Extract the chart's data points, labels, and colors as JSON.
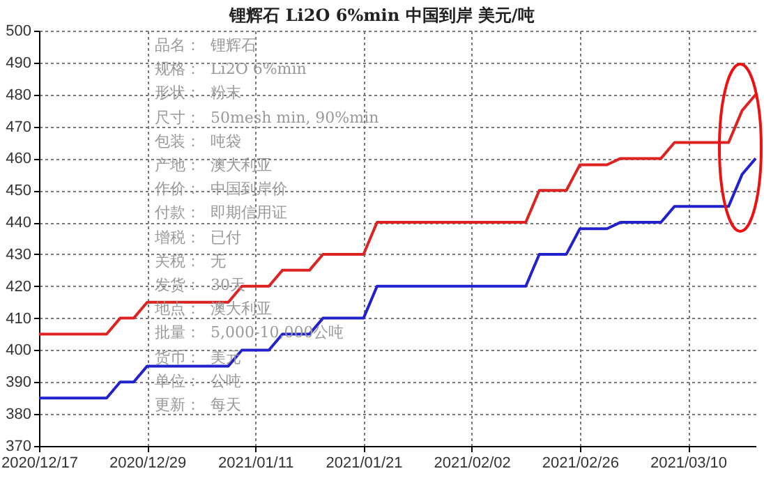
{
  "chart_data": {
    "type": "line",
    "title": "锂辉石 Li2O 6%min 中国到岸 美元/吨",
    "annotations": [
      "品名：  锂辉石",
      "规格：  Li2O 6%min",
      "形状：  粉末",
      "尺寸：  50mesh min, 90%min",
      "包装：  吨袋",
      "产地：  澳大利亚",
      "作价：  中国到岸价",
      "付款：  即期信用证",
      "增税：  已付",
      "关税：  无",
      "发货：  30天",
      "地点：  澳大利亚",
      "批量：  5,000-10,000公吨",
      "货币：  美元",
      "单位：  公吨",
      "更新：  每天"
    ],
    "categories": [
      "2020/12/17",
      null,
      null,
      null,
      null,
      null,
      null,
      null,
      "2020/12/29",
      null,
      null,
      null,
      null,
      null,
      null,
      null,
      "2021/01/11",
      null,
      null,
      null,
      null,
      null,
      null,
      null,
      "2021/01/21",
      null,
      null,
      null,
      null,
      null,
      null,
      null,
      "2021/02/02",
      null,
      null,
      null,
      null,
      null,
      null,
      null,
      "2021/02/26",
      null,
      null,
      null,
      null,
      null,
      null,
      null,
      "2021/03/10",
      null,
      null,
      null,
      null,
      null
    ],
    "series": [
      {
        "color": "#dd2222",
        "values": [
          405,
          405,
          405,
          405,
          405,
          405,
          410,
          410,
          415,
          415,
          415,
          415,
          415,
          415,
          415,
          420,
          420,
          420,
          425,
          425,
          425,
          430,
          430,
          430,
          430,
          440,
          440,
          440,
          440,
          440,
          440,
          440,
          440,
          440,
          440,
          440,
          440,
          450,
          450,
          450,
          458,
          458,
          458,
          460,
          460,
          460,
          460,
          465,
          465,
          465,
          465,
          465,
          475,
          480
        ]
      },
      {
        "color": "#2222cc",
        "values": [
          385,
          385,
          385,
          385,
          385,
          385,
          390,
          390,
          395,
          395,
          395,
          395,
          395,
          395,
          395,
          400,
          400,
          400,
          405,
          405,
          405,
          410,
          410,
          410,
          410,
          420,
          420,
          420,
          420,
          420,
          420,
          420,
          420,
          420,
          420,
          420,
          420,
          430,
          430,
          430,
          438,
          438,
          438,
          440,
          440,
          440,
          440,
          445,
          445,
          445,
          445,
          445,
          455,
          460
        ]
      }
    ],
    "ylim": [
      370,
      500
    ],
    "yticks": [
      370,
      380,
      390,
      400,
      410,
      420,
      430,
      440,
      450,
      460,
      470,
      480,
      490,
      500
    ],
    "grid": true
  }
}
